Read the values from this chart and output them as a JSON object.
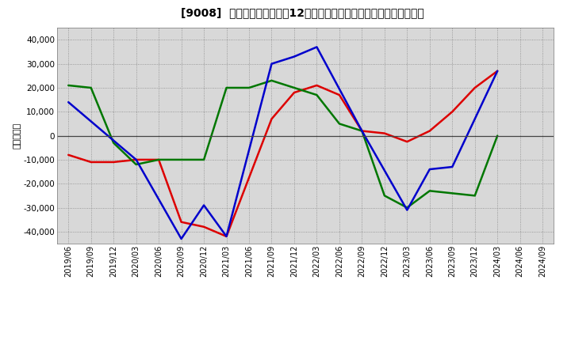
{
  "title": "[9008]  キャッシュフローの12か月移動合計の対前年同期増減額の推移",
  "ylabel": "（百万円）",
  "bg_color": "#ffffff",
  "plot_bg": "#d8d8d8",
  "ylim": [
    -45000,
    45000
  ],
  "yticks": [
    -40000,
    -30000,
    -20000,
    -10000,
    0,
    10000,
    20000,
    30000,
    40000
  ],
  "x_labels": [
    "2019/06",
    "2019/09",
    "2019/12",
    "2020/03",
    "2020/06",
    "2020/09",
    "2020/12",
    "2021/03",
    "2021/06",
    "2021/09",
    "2021/12",
    "2022/03",
    "2022/06",
    "2022/09",
    "2022/12",
    "2023/03",
    "2023/06",
    "2023/09",
    "2023/12",
    "2024/03",
    "2024/06",
    "2024/09"
  ],
  "eigyo_cf": [
    -8000,
    -11000,
    -11000,
    -10000,
    -10000,
    -36000,
    -38000,
    -42000,
    null,
    7000,
    18000,
    21000,
    17000,
    2000,
    1000,
    -2500,
    2000,
    10000,
    20000,
    27000,
    null,
    null
  ],
  "toshi_cf": [
    21000,
    20000,
    -3000,
    -12000,
    -10000,
    -10000,
    -10000,
    20000,
    20000,
    23000,
    20000,
    17000,
    5000,
    2000,
    -25000,
    -30000,
    -23000,
    -24000,
    -25000,
    0,
    null,
    null
  ],
  "free_cf": [
    14000,
    null,
    null,
    -10000,
    null,
    -43000,
    -29000,
    -42000,
    null,
    30000,
    33000,
    37000,
    null,
    2000,
    null,
    -31000,
    -14000,
    -13000,
    null,
    27000,
    null,
    null
  ],
  "eigyo_color": "#dd0000",
  "toshi_color": "#007700",
  "free_color": "#0000cc"
}
